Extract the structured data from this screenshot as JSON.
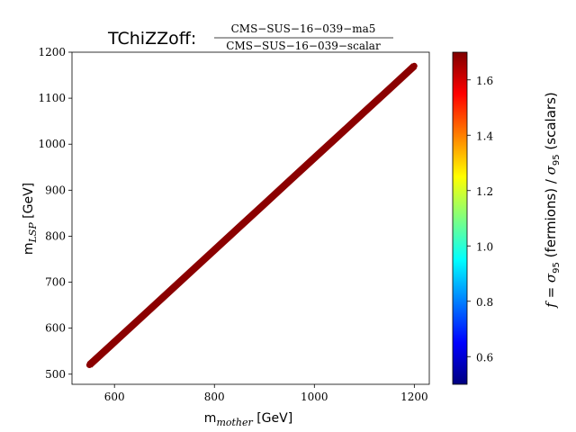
{
  "chart_data": {
    "type": "scatter",
    "title_prefix": "TChiZZoff:",
    "title_numerator": "CMS−SUS−16−039−ma5",
    "title_denominator": "CMS−SUS−16−039−scalar",
    "xlabel_prefix": "m",
    "xlabel_sub": "mother",
    "xlabel_suffix": " [GeV]",
    "ylabel_prefix": "m",
    "ylabel_sub": "LSP",
    "ylabel_suffix": " [GeV]",
    "xlim": [
      515,
      1230
    ],
    "ylim": [
      478,
      1200
    ],
    "x_ticks": [
      600,
      800,
      1000,
      1200
    ],
    "x_tick_labels": [
      "600",
      "800",
      "1000",
      "1200"
    ],
    "y_ticks": [
      500,
      600,
      700,
      800,
      900,
      1000,
      1100,
      1200
    ],
    "y_tick_labels": [
      "500",
      "600",
      "700",
      "800",
      "900",
      "1000",
      "1100",
      "1200"
    ],
    "series": [
      {
        "points": [
          {
            "x": 550,
            "y": 520,
            "f": 1.7
          },
          {
            "x": 600,
            "y": 570,
            "f": 1.7
          },
          {
            "x": 650,
            "y": 620,
            "f": 1.7
          },
          {
            "x": 700,
            "y": 670,
            "f": 1.7
          },
          {
            "x": 750,
            "y": 720,
            "f": 1.7
          },
          {
            "x": 800,
            "y": 770,
            "f": 1.7
          },
          {
            "x": 850,
            "y": 820,
            "f": 1.7
          },
          {
            "x": 900,
            "y": 870,
            "f": 1.7
          },
          {
            "x": 950,
            "y": 920,
            "f": 1.7
          },
          {
            "x": 1000,
            "y": 970,
            "f": 1.7
          },
          {
            "x": 1050,
            "y": 1020,
            "f": 1.7
          },
          {
            "x": 1100,
            "y": 1070,
            "f": 1.7
          },
          {
            "x": 1150,
            "y": 1120,
            "f": 1.7
          },
          {
            "x": 1200,
            "y": 1170,
            "f": 1.7
          }
        ]
      }
    ],
    "band_color": "#8b0000",
    "colorbar": {
      "label_f": "f",
      "label_sigma": "σ",
      "label_sub": "95",
      "label_text1": "(fermions)",
      "label_text2": "(scalars)",
      "range": [
        0.5,
        1.7
      ],
      "ticks": [
        0.6,
        0.8,
        1.0,
        1.2,
        1.4,
        1.6
      ],
      "tick_labels": [
        "0.6",
        "0.8",
        "1.0",
        "1.2",
        "1.4",
        "1.6"
      ],
      "colormap": "jet",
      "colormap_stops": [
        "#00007f",
        "#0000ff",
        "#007fff",
        "#00ffff",
        "#7fff7f",
        "#ffff00",
        "#ff7f00",
        "#ff0000",
        "#7f0000"
      ]
    }
  }
}
